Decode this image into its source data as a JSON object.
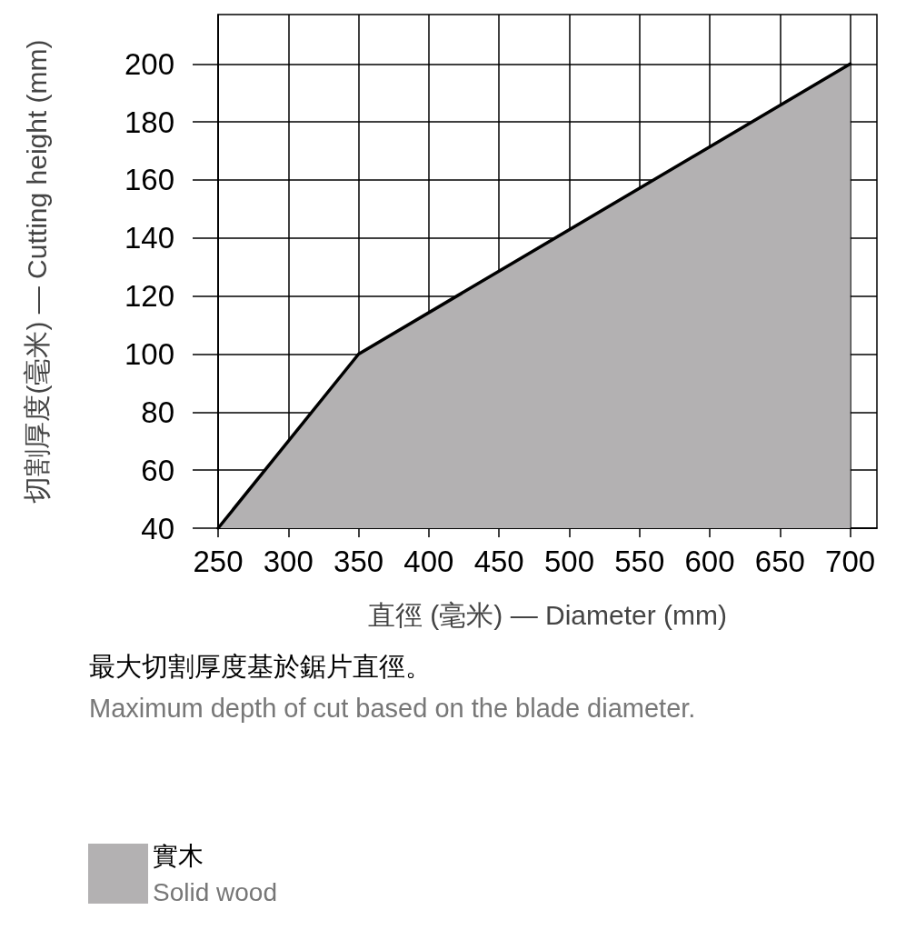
{
  "chart_data": {
    "type": "area",
    "xlabel": "直徑 (毫米) — Diameter (mm)",
    "ylabel": "切割厚度(毫米) — Cutting height (mm)",
    "annotations": [
      "最大切割厚度基於鋸片直徑。",
      "Maximum depth of cut based on the blade diameter."
    ],
    "x": [
      250,
      350,
      700
    ],
    "series": [
      {
        "name": "實木\nSolid wood",
        "color": "#b3b1b2",
        "values": [
          40,
          100,
          200
        ]
      }
    ],
    "xlim": [
      250,
      719
    ],
    "ylim": [
      40,
      217
    ],
    "xticks": [
      250,
      300,
      350,
      400,
      450,
      500,
      550,
      600,
      650,
      700
    ],
    "yticks": [
      40,
      60,
      80,
      100,
      120,
      140,
      160,
      180,
      200
    ],
    "grid": true,
    "legend": "bottom left",
    "marker": "none",
    "line_style": "solid"
  }
}
